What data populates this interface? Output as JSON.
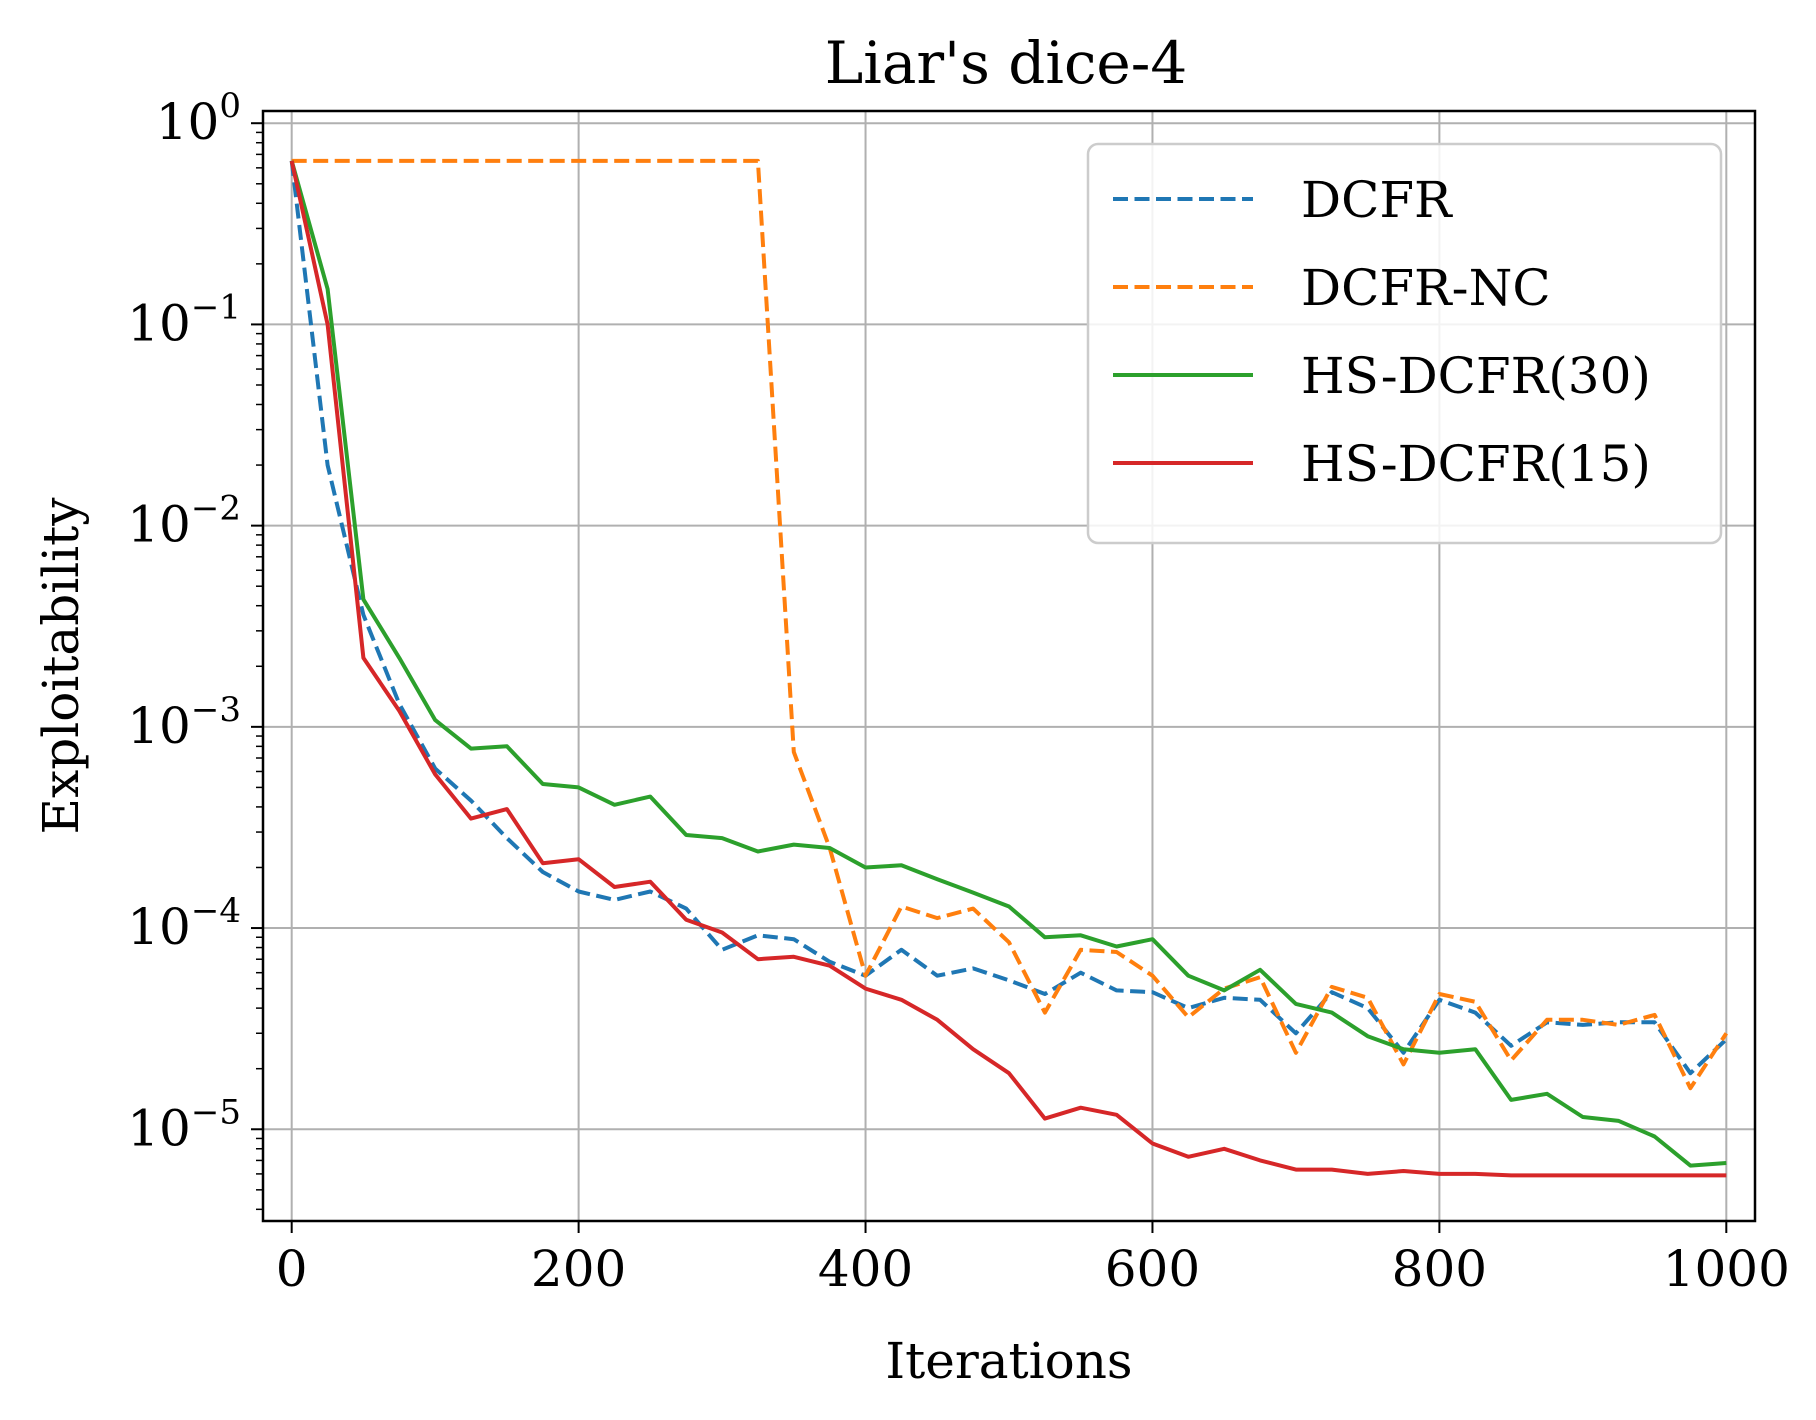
{
  "chart_data": {
    "type": "line",
    "title": "Liar's dice-4",
    "xlabel": "Iterations",
    "ylabel": "Exploitability",
    "xscale": "linear",
    "yscale": "log",
    "xlim": [
      -20,
      1020
    ],
    "ylim": [
      3.5e-06,
      1.15
    ],
    "xticks": [
      0,
      200,
      400,
      600,
      800,
      1000
    ],
    "xtick_labels": [
      "0",
      "200",
      "400",
      "600",
      "800",
      "1000"
    ],
    "yticks": [
      {
        "value": 1,
        "base": "10",
        "exp": "0"
      },
      {
        "value": 0.1,
        "base": "10",
        "exp": "−1"
      },
      {
        "value": 0.01,
        "base": "10",
        "exp": "−2"
      },
      {
        "value": 0.001,
        "base": "10",
        "exp": "−3"
      },
      {
        "value": 0.0001,
        "base": "10",
        "exp": "−4"
      },
      {
        "value": 1e-05,
        "base": "10",
        "exp": "−5"
      }
    ],
    "grid": true,
    "legend_position": "top-right",
    "x": [
      0,
      25,
      50,
      75,
      100,
      125,
      150,
      175,
      200,
      225,
      250,
      275,
      300,
      325,
      350,
      375,
      400,
      425,
      450,
      475,
      500,
      525,
      550,
      575,
      600,
      625,
      650,
      675,
      700,
      725,
      750,
      775,
      800,
      825,
      850,
      875,
      900,
      925,
      950,
      975,
      1000
    ],
    "series": [
      {
        "name": "DCFR",
        "color": "#1f77b4",
        "dashed": true,
        "values": [
          0.65,
          0.02,
          0.0036,
          0.0013,
          0.00062,
          0.00043,
          0.00028,
          0.00019,
          0.000152,
          0.000138,
          0.000152,
          0.000125,
          7.8e-05,
          9.2e-05,
          8.8e-05,
          6.8e-05,
          5.8e-05,
          7.8e-05,
          5.8e-05,
          6.3e-05,
          5.5e-05,
          4.7e-05,
          6e-05,
          4.9e-05,
          4.8e-05,
          4e-05,
          4.5e-05,
          4.4e-05,
          3e-05,
          4.8e-05,
          4e-05,
          2.4e-05,
          4.4e-05,
          3.8e-05,
          2.6e-05,
          3.4e-05,
          3.3e-05,
          3.4e-05,
          3.4e-05,
          1.9e-05,
          2.8e-05
        ]
      },
      {
        "name": "DCFR-NC",
        "color": "#ff7f0e",
        "dashed": true,
        "values": [
          0.65,
          0.65,
          0.65,
          0.65,
          0.65,
          0.65,
          0.65,
          0.65,
          0.65,
          0.65,
          0.65,
          0.65,
          0.65,
          0.65,
          0.00075,
          0.00025,
          5.8e-05,
          0.000128,
          0.000112,
          0.000125,
          8.5e-05,
          3.8e-05,
          7.8e-05,
          7.6e-05,
          5.8e-05,
          3.6e-05,
          5e-05,
          5.7e-05,
          2.4e-05,
          5.1e-05,
          4.5e-05,
          2.1e-05,
          4.7e-05,
          4.3e-05,
          2.2e-05,
          3.5e-05,
          3.5e-05,
          3.3e-05,
          3.7e-05,
          1.6e-05,
          3e-05
        ]
      },
      {
        "name": "HS-DCFR(30)",
        "color": "#2ca02c",
        "dashed": false,
        "values": [
          0.65,
          0.15,
          0.0043,
          0.0022,
          0.00108,
          0.00078,
          0.0008,
          0.00052,
          0.0005,
          0.00041,
          0.00045,
          0.00029,
          0.00028,
          0.00024,
          0.00026,
          0.00025,
          0.0002,
          0.000205,
          0.000175,
          0.00015,
          0.000128,
          9e-05,
          9.2e-05,
          8.1e-05,
          8.8e-05,
          5.8e-05,
          4.9e-05,
          6.2e-05,
          4.2e-05,
          3.8e-05,
          2.9e-05,
          2.5e-05,
          2.4e-05,
          2.5e-05,
          1.4e-05,
          1.5e-05,
          1.15e-05,
          1.1e-05,
          9.2e-06,
          6.6e-06,
          6.8e-06
        ]
      },
      {
        "name": "HS-DCFR(15)",
        "color": "#d62728",
        "dashed": false,
        "values": [
          0.65,
          0.1,
          0.0022,
          0.0012,
          0.00058,
          0.00035,
          0.00039,
          0.00021,
          0.00022,
          0.00016,
          0.00017,
          0.00011,
          9.5e-05,
          7e-05,
          7.2e-05,
          6.5e-05,
          5e-05,
          4.4e-05,
          3.5e-05,
          2.5e-05,
          1.9e-05,
          1.13e-05,
          1.28e-05,
          1.18e-05,
          8.5e-06,
          7.3e-06,
          8e-06,
          7e-06,
          6.3e-06,
          6.3e-06,
          6e-06,
          6.2e-06,
          6e-06,
          6e-06,
          5.9e-06,
          5.9e-06,
          5.9e-06,
          5.9e-06,
          5.9e-06,
          5.9e-06,
          5.9e-06
        ]
      }
    ]
  }
}
